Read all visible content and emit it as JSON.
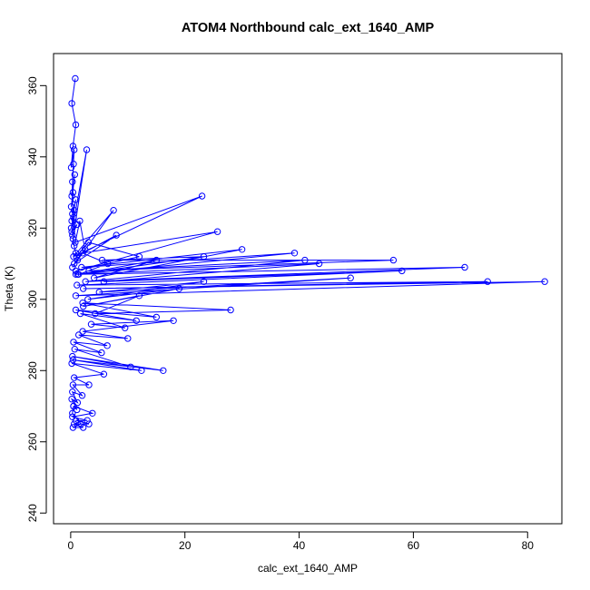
{
  "chart_data": {
    "type": "line",
    "title": "ATOM4 Northbound calc_ext_1640_AMP",
    "xlabel": "calc_ext_1640_AMP",
    "ylabel": "Theta (K)",
    "xlim": [
      -3,
      86
    ],
    "ylim": [
      237,
      369
    ],
    "xticks": [
      0,
      20,
      40,
      60,
      80
    ],
    "yticks": [
      240,
      260,
      280,
      300,
      320,
      340,
      360
    ],
    "grid": false,
    "legend": "none",
    "markers": "open circles",
    "series": [
      {
        "color": "#0000ff",
        "x": [
          0.8,
          0.2,
          0.9,
          0.4,
          0.1,
          0.6,
          0.3,
          0.5,
          0.2,
          0.7,
          0.1,
          0.4,
          0.3,
          0.9,
          0.2,
          0.6,
          0.1,
          0.5,
          0.3,
          1.1,
          0.2,
          2.8,
          0.4,
          0.6,
          0.9,
          1.2,
          0.3,
          7.5,
          0.5,
          23.0,
          0.8,
          1.6,
          2.5,
          0.6,
          8.0,
          1.0,
          3.1,
          12.0,
          0.9,
          25.7,
          2.1,
          6.5,
          1.4,
          15.0,
          4.1,
          30.0,
          1.9,
          39.2,
          1.2,
          23.3,
          5.5,
          56.5,
          3.2,
          41.0,
          2.6,
          69.0,
          0.9,
          43.5,
          5.8,
          58.0,
          1.1,
          73.0,
          2.2,
          83.0,
          0.9,
          49.0,
          5.0,
          23.3,
          3.0,
          19.0,
          2.2,
          12.0,
          4.3,
          28.0,
          2.1,
          15.0,
          0.9,
          11.5,
          1.7,
          9.5,
          3.6,
          18.0,
          2.1,
          10.0,
          1.4,
          6.4,
          0.5,
          5.4,
          0.7,
          10.5,
          0.3,
          16.2,
          0.4,
          12.4,
          0.2,
          5.8,
          0.6,
          3.2,
          0.4,
          2.0,
          0.3,
          1.2,
          0.2,
          1.1,
          0.5,
          3.8,
          0.3,
          2.9,
          0.9,
          3.2,
          0.6,
          2.2,
          0.4,
          1.8,
          0.3,
          0.5
        ],
        "y": [
          362,
          355,
          349,
          343,
          337,
          342,
          333,
          338,
          329,
          335,
          326,
          330,
          324,
          328,
          322,
          325,
          320,
          323,
          318,
          321,
          319,
          342,
          317,
          315,
          313,
          311,
          309,
          325,
          312,
          329,
          316,
          322,
          314,
          310,
          318,
          312,
          316,
          312,
          308,
          319,
          313,
          310,
          307,
          311,
          306,
          314,
          309,
          313,
          307,
          312,
          311,
          311,
          308,
          311,
          305,
          309,
          307,
          310,
          305,
          308,
          304,
          305,
          303,
          305,
          301,
          306,
          302,
          305,
          300,
          303,
          298,
          301,
          296,
          297,
          299,
          295,
          297,
          294,
          296,
          292,
          293,
          294,
          291,
          289,
          290,
          287,
          288,
          285,
          286,
          281,
          284,
          280,
          283,
          280,
          282,
          279,
          278,
          276,
          276,
          273,
          274,
          271,
          272,
          269,
          270,
          268,
          267,
          266,
          266,
          265,
          265,
          264,
          264,
          265,
          268,
          270
        ]
      }
    ]
  }
}
